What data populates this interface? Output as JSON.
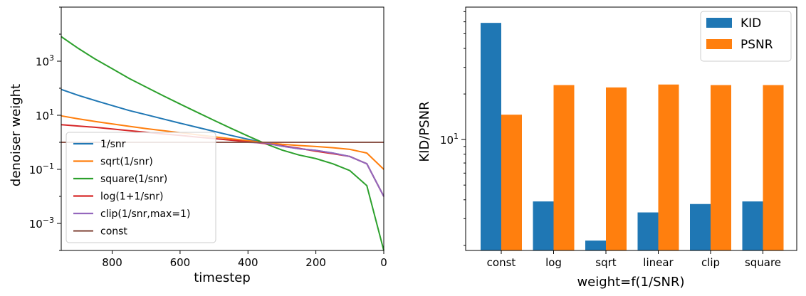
{
  "chart_data": [
    {
      "type": "line",
      "xlabel": "timestep",
      "ylabel": "denoiser weight",
      "xlim": [
        950,
        0
      ],
      "ylim": [
        0.0001,
        100000
      ],
      "yscale": "log",
      "x_ticks": [
        800,
        600,
        400,
        200,
        0
      ],
      "x_tick_labels": [
        "800",
        "600",
        "400",
        "200",
        "0"
      ],
      "y_ticks": [
        0.001,
        0.1,
        10,
        1000
      ],
      "y_tick_labels": [
        {
          "base": "10",
          "exp": "−3"
        },
        {
          "base": "10",
          "exp": "−1"
        },
        {
          "base": "10",
          "exp": "1"
        },
        {
          "base": "10",
          "exp": "3"
        }
      ],
      "legend_position": "lower-left",
      "x": [
        950,
        900,
        850,
        800,
        750,
        700,
        650,
        600,
        550,
        500,
        450,
        400,
        350,
        300,
        250,
        200,
        150,
        100,
        50,
        0
      ],
      "series": [
        {
          "name": "1/snr",
          "color": "#1f77b4",
          "values": [
            90,
            55,
            35,
            23,
            15,
            10.5,
            7.3,
            5.1,
            3.6,
            2.55,
            1.8,
            1.3,
            0.95,
            0.72,
            0.58,
            0.5,
            0.4,
            0.3,
            0.16,
            0.01
          ]
        },
        {
          "name": "sqrt(1/snr)",
          "color": "#ff7f0e",
          "values": [
            9.5,
            7.4,
            5.9,
            4.8,
            3.9,
            3.2,
            2.7,
            2.26,
            1.9,
            1.6,
            1.35,
            1.14,
            0.98,
            0.85,
            0.76,
            0.7,
            0.63,
            0.55,
            0.4,
            0.1
          ]
        },
        {
          "name": "square(1/snr)",
          "color": "#2ca02c",
          "values": [
            8100,
            3000,
            1200,
            530,
            230,
            110,
            53,
            26,
            13,
            6.5,
            3.3,
            1.7,
            0.9,
            0.52,
            0.34,
            0.25,
            0.16,
            0.09,
            0.025,
            0.0001
          ]
        },
        {
          "name": "log(1+1/snr)",
          "color": "#d62728",
          "values": [
            4.5,
            4.0,
            3.6,
            3.1,
            2.7,
            2.35,
            2.05,
            1.8,
            1.57,
            1.37,
            1.2,
            1.05,
            0.9,
            0.75,
            0.6,
            0.47,
            0.38,
            0.3,
            0.16,
            0.01
          ]
        },
        {
          "name": "clip(1/snr,max=1)",
          "color": "#9467bd",
          "values": [
            1,
            1,
            1,
            1,
            1,
            1,
            1,
            1,
            1,
            1,
            1,
            1,
            0.95,
            0.72,
            0.58,
            0.5,
            0.4,
            0.3,
            0.16,
            0.01
          ]
        },
        {
          "name": "const",
          "color": "#8c564b",
          "values": [
            1,
            1,
            1,
            1,
            1,
            1,
            1,
            1,
            1,
            1,
            1,
            1,
            1,
            1,
            1,
            1,
            1,
            1,
            1,
            1
          ]
        }
      ]
    },
    {
      "type": "bar",
      "xlabel": "weight=f(1/SNR)",
      "ylabel": "KID/PSNR",
      "yscale": "log",
      "ylim": [
        1.85,
        75
      ],
      "y_ticks": [
        10
      ],
      "y_tick_labels": [
        {
          "base": "10",
          "exp": "1"
        }
      ],
      "legend_position": "top-right",
      "categories": [
        "const",
        "log",
        "sqrt",
        "linear",
        "clip",
        "square"
      ],
      "series": [
        {
          "name": "KID",
          "color": "#1f77b4",
          "values": [
            59,
            3.9,
            2.15,
            3.3,
            3.75,
            3.9
          ]
        },
        {
          "name": "PSNR",
          "color": "#ff7f0e",
          "values": [
            14.6,
            22.9,
            22.1,
            23.1,
            22.9,
            22.9
          ]
        }
      ]
    }
  ]
}
